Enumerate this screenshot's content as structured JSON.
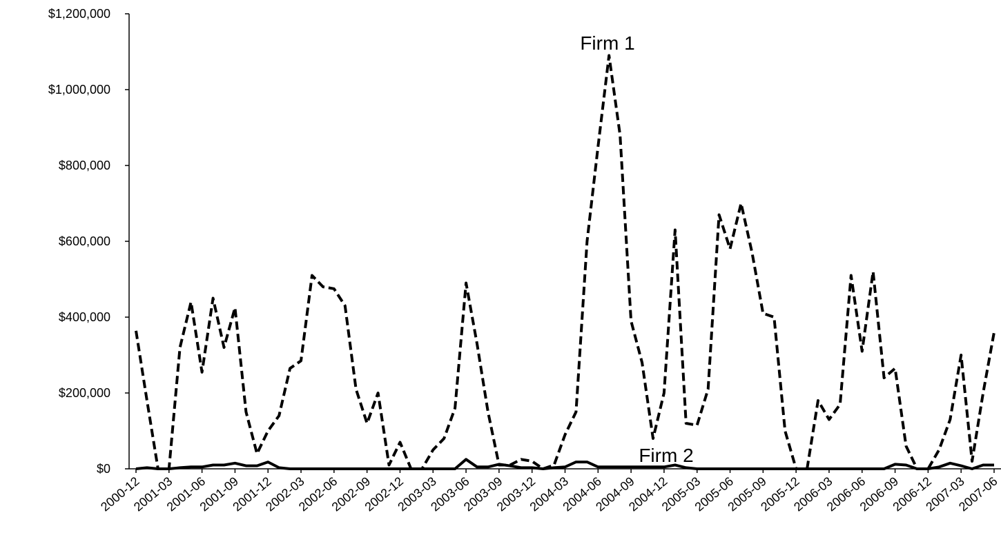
{
  "chart_data": {
    "type": "line",
    "annotations": [
      "Firm 1",
      "Firm 2"
    ],
    "categories": [
      "2000-12",
      null,
      null,
      "2001-03",
      null,
      null,
      "2001-06",
      null,
      null,
      "2001-09",
      null,
      null,
      "2001-12",
      null,
      null,
      "2002-03",
      null,
      null,
      "2002-06",
      null,
      null,
      "2002-09",
      null,
      null,
      "2002-12",
      null,
      null,
      "2003-03",
      null,
      null,
      "2003-06",
      null,
      null,
      "2003-09",
      null,
      null,
      "2003-12",
      null,
      null,
      "2004-03",
      null,
      null,
      "2004-06",
      null,
      null,
      "2004-09",
      null,
      null,
      "2004-12",
      null,
      null,
      "2005-03",
      null,
      null,
      "2005-06",
      null,
      null,
      "2005-09",
      null,
      null,
      "2005-12",
      null,
      null,
      "2006-03",
      null,
      null,
      "2006-06",
      null,
      null,
      "2006-09",
      null,
      null,
      "2006-12",
      null,
      null,
      "2007-03",
      null,
      null,
      "2007-06"
    ],
    "series": [
      {
        "name": "Firm 1",
        "color": "#000000",
        "dashed": true,
        "values": [
          364000,
          180000,
          0,
          0,
          320000,
          440000,
          255000,
          450000,
          320000,
          425000,
          150000,
          40000,
          100000,
          140000,
          265000,
          285000,
          510000,
          480000,
          475000,
          430000,
          210000,
          120000,
          200000,
          10000,
          70000,
          0,
          0,
          50000,
          80000,
          160000,
          490000,
          330000,
          150000,
          10000,
          10000,
          25000,
          20000,
          0,
          10000,
          90000,
          150000,
          600000,
          850000,
          1090000,
          880000,
          390000,
          280000,
          80000,
          200000,
          630000,
          120000,
          115000,
          210000,
          670000,
          580000,
          700000,
          570000,
          410000,
          400000,
          100000,
          0,
          0,
          180000,
          130000,
          170000,
          510000,
          310000,
          520000,
          240000,
          265000,
          60000,
          0,
          0,
          50000,
          130000,
          300000,
          20000,
          200000,
          360000
        ]
      },
      {
        "name": "Firm 2",
        "color": "#000000",
        "dashed": false,
        "values": [
          0,
          3000,
          0,
          0,
          3000,
          5000,
          5000,
          10000,
          10000,
          15000,
          8000,
          8000,
          18000,
          3000,
          0,
          0,
          0,
          0,
          0,
          0,
          0,
          0,
          0,
          0,
          0,
          0,
          0,
          0,
          0,
          0,
          25000,
          5000,
          5000,
          12000,
          8000,
          3000,
          3000,
          0,
          3000,
          5000,
          18000,
          18000,
          5000,
          5000,
          5000,
          5000,
          5000,
          5000,
          5000,
          10000,
          3000,
          0,
          0,
          0,
          0,
          0,
          0,
          0,
          0,
          0,
          0,
          0,
          0,
          0,
          0,
          0,
          0,
          0,
          0,
          12000,
          10000,
          0,
          0,
          5000,
          15000,
          8000,
          0,
          10000,
          10000
        ]
      }
    ],
    "ylim": [
      0,
      1200000
    ],
    "yticks": [
      {
        "value": 0,
        "label": "$0"
      },
      {
        "value": 200000,
        "label": "$200,000"
      },
      {
        "value": 400000,
        "label": "$400,000"
      },
      {
        "value": 600000,
        "label": "$600,000"
      },
      {
        "value": 800000,
        "label": "$800,000"
      },
      {
        "value": 1000000,
        "label": "$1,000,000"
      },
      {
        "value": 1200000,
        "label": "$1,200,000"
      }
    ]
  }
}
